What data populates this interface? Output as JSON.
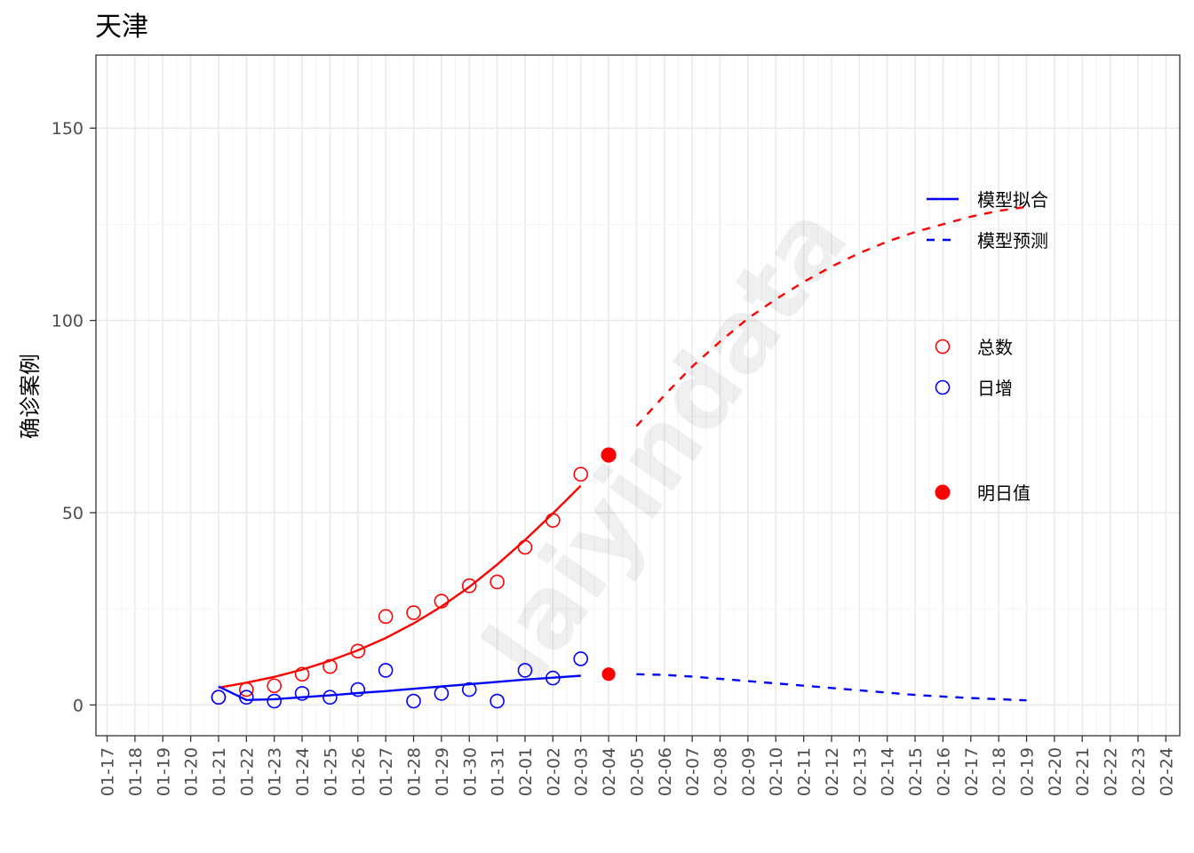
{
  "chart_data": {
    "type": "line",
    "title": "天津",
    "xlabel": "",
    "ylabel": "确诊案例",
    "watermark": "laiyindata",
    "x_ticks": [
      "01-17",
      "01-18",
      "01-19",
      "01-20",
      "01-21",
      "01-22",
      "01-23",
      "01-24",
      "01-25",
      "01-26",
      "01-27",
      "01-28",
      "01-29",
      "01-30",
      "01-31",
      "02-01",
      "02-02",
      "02-03",
      "02-04",
      "02-05",
      "02-06",
      "02-07",
      "02-08",
      "02-09",
      "02-10",
      "02-11",
      "02-12",
      "02-13",
      "02-14",
      "02-15",
      "02-16",
      "02-17",
      "02-18",
      "02-19",
      "02-20",
      "02-21",
      "02-22",
      "02-23",
      "02-24"
    ],
    "xlim": [
      "01-16.6",
      "02-24.5"
    ],
    "ylim": [
      -8,
      169
    ],
    "y_ticks": [
      0,
      50,
      100,
      150
    ],
    "grid": true,
    "colors": {
      "total": "#ff0000",
      "daily": "#0000ff"
    },
    "series": [
      {
        "kind": "points",
        "legend_key": "总数",
        "color": "#ff0000",
        "x": [
          "01-21",
          "01-22",
          "01-23",
          "01-24",
          "01-25",
          "01-26",
          "01-27",
          "01-28",
          "01-29",
          "01-30",
          "01-31",
          "02-01",
          "02-02",
          "02-03"
        ],
        "y": [
          2,
          4,
          5,
          8,
          10,
          14,
          23,
          24,
          27,
          31,
          32,
          41,
          48,
          60
        ]
      },
      {
        "kind": "points",
        "legend_key": "日增",
        "color": "#0000ff",
        "x": [
          "01-21",
          "01-22",
          "01-23",
          "01-24",
          "01-25",
          "01-26",
          "01-27",
          "01-28",
          "01-29",
          "01-30",
          "01-31",
          "02-01",
          "02-02",
          "02-03"
        ],
        "y": [
          2,
          2,
          1,
          3,
          2,
          4,
          9,
          1,
          3,
          4,
          1,
          9,
          7,
          12
        ]
      },
      {
        "kind": "fit",
        "legend_key": "模型拟合",
        "color": "#ff0000",
        "x": [
          "01-21",
          "01-22",
          "01-23",
          "01-24",
          "01-25",
          "01-26",
          "01-27",
          "01-28",
          "01-29",
          "01-30",
          "01-31",
          "02-01",
          "02-02",
          "02-03"
        ],
        "y": [
          4.5,
          5.8,
          7.3,
          9.2,
          11.5,
          14.2,
          17.4,
          21.2,
          25.6,
          30.7,
          36.5,
          42.9,
          49.8,
          57
        ]
      },
      {
        "kind": "fit",
        "legend_key": "模型拟合",
        "color": "#0000ff",
        "x": [
          "01-21",
          "01-22",
          "01-23",
          "01-24",
          "01-25",
          "01-26",
          "01-27",
          "01-28",
          "01-29",
          "01-30",
          "01-31",
          "02-01",
          "02-02",
          "02-03"
        ],
        "y": [
          4.8,
          1.3,
          1.5,
          2,
          2.5,
          3.1,
          3.6,
          4.2,
          4.8,
          5.4,
          6,
          6.6,
          7.1,
          7.6
        ]
      },
      {
        "kind": "prediction",
        "legend_key": "模型预测",
        "color": "#ff0000",
        "x": [
          "02-05",
          "02-06",
          "02-07",
          "02-08",
          "02-09",
          "02-10",
          "02-11",
          "02-12",
          "02-13",
          "02-14",
          "02-15",
          "02-16",
          "02-17",
          "02-18",
          "02-19"
        ],
        "y": [
          72.5,
          80.5,
          88,
          94.5,
          100.5,
          105.5,
          110,
          114,
          117.5,
          120.5,
          123,
          125,
          127,
          128.5,
          129.5
        ]
      },
      {
        "kind": "prediction",
        "legend_key": "模型预测",
        "color": "#0000ff",
        "x": [
          "02-05",
          "02-06",
          "02-07",
          "02-08",
          "02-09",
          "02-10",
          "02-11",
          "02-12",
          "02-13",
          "02-14",
          "02-15",
          "02-16",
          "02-17",
          "02-18",
          "02-19"
        ],
        "y": [
          8,
          7.8,
          7.4,
          6.8,
          6.2,
          5.6,
          5,
          4.4,
          3.8,
          3.2,
          2.6,
          2.2,
          1.8,
          1.5,
          1.2
        ]
      },
      {
        "kind": "tomorrow",
        "legend_key": "明日值",
        "color": "#ff0000",
        "x": [
          "02-04",
          "02-04"
        ],
        "y": [
          65,
          8
        ]
      }
    ],
    "legend": {
      "position": "right-inside",
      "lines": [
        {
          "label": "模型拟合",
          "style": "solid",
          "color": "#0000ff"
        },
        {
          "label": "模型预测",
          "style": "dashed",
          "color": "#0000ff"
        }
      ],
      "points": [
        {
          "label": "总数",
          "symbol": "open-circle",
          "color": "#ff0000"
        },
        {
          "label": "日增",
          "symbol": "open-circle",
          "color": "#0000ff"
        }
      ],
      "markers": [
        {
          "label": "明日值",
          "symbol": "filled-circle",
          "color": "#ff0000"
        }
      ]
    }
  }
}
